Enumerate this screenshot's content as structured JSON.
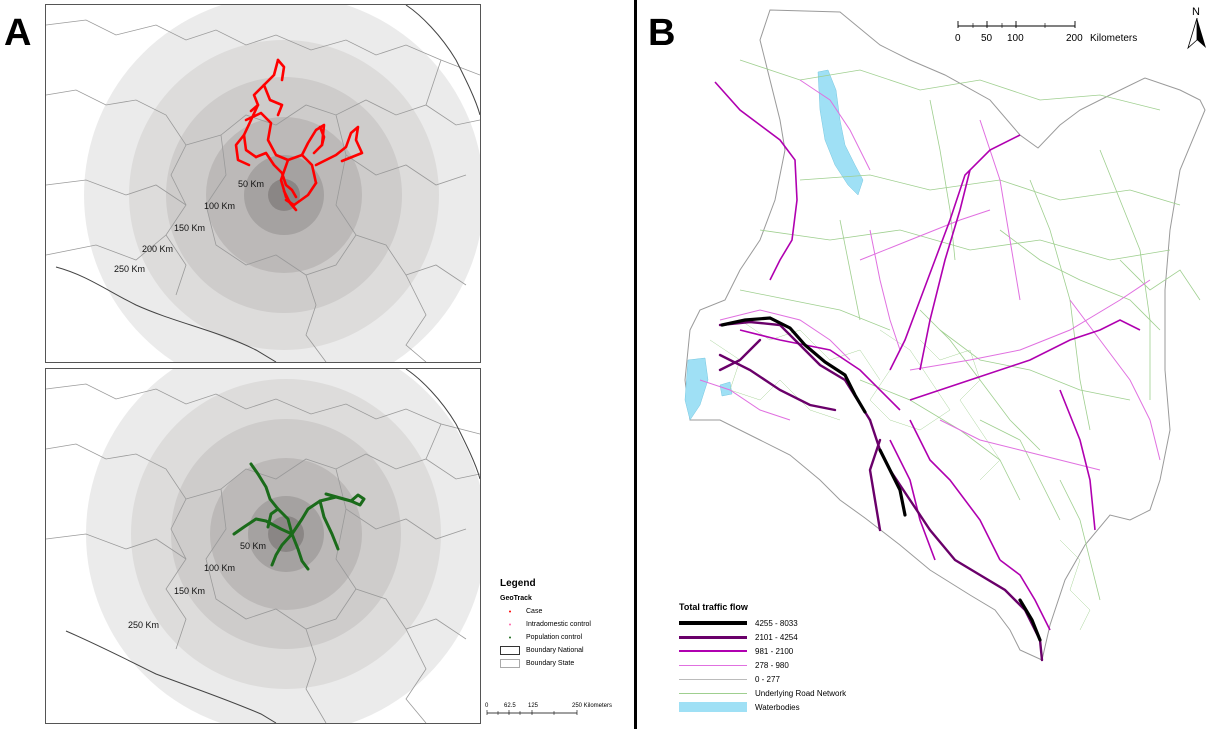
{
  "panels": {
    "a": {
      "letter": "A"
    },
    "b": {
      "letter": "B"
    }
  },
  "panel_a": {
    "top_map": {
      "track_color": "#ff0000",
      "ring_labels": [
        "50 Km",
        "100 Km",
        "150 Km",
        "200 Km",
        "250 Km"
      ]
    },
    "bottom_map": {
      "track_color": "#1a6b1a",
      "ring_labels": [
        "50 Km",
        "100 Km",
        "150 Km",
        "250 Km"
      ]
    },
    "legend": {
      "title": "Legend",
      "subtitle": "GeoTrack",
      "items": [
        "Case",
        "Intradomestic control",
        "Population control",
        "Boundary National",
        "Boundary State"
      ]
    },
    "scale_bar": {
      "ticks": [
        "0",
        "62.5",
        "125",
        "250 Kilometers"
      ]
    }
  },
  "panel_b": {
    "scale_bar": {
      "ticks": [
        "0",
        "50",
        "100",
        "200"
      ],
      "unit": "Kilometers"
    },
    "north_arrow": "N",
    "legend": {
      "title": "Total traffic flow",
      "items": [
        {
          "label": "4255 - 8033",
          "color": "#000000"
        },
        {
          "label": "2101 - 4254",
          "color": "#6a006a"
        },
        {
          "label": "981 - 2100",
          "color": "#b000b0"
        },
        {
          "label": "278 - 980",
          "color": "#e070e0"
        },
        {
          "label": "0 - 277",
          "color": "#bbbbbb"
        },
        {
          "label": "Underlying Road Network",
          "color": "#9fcf8f"
        },
        {
          "label": "Waterbodies",
          "color": "#9fe0f5"
        }
      ]
    }
  },
  "colors": {
    "ring_dark": "#8a8685",
    "ring_light": "#ebebeb",
    "boundary": "#9a9a9a",
    "water": "#9fe0f5",
    "road_network": "#9fcf8f"
  }
}
